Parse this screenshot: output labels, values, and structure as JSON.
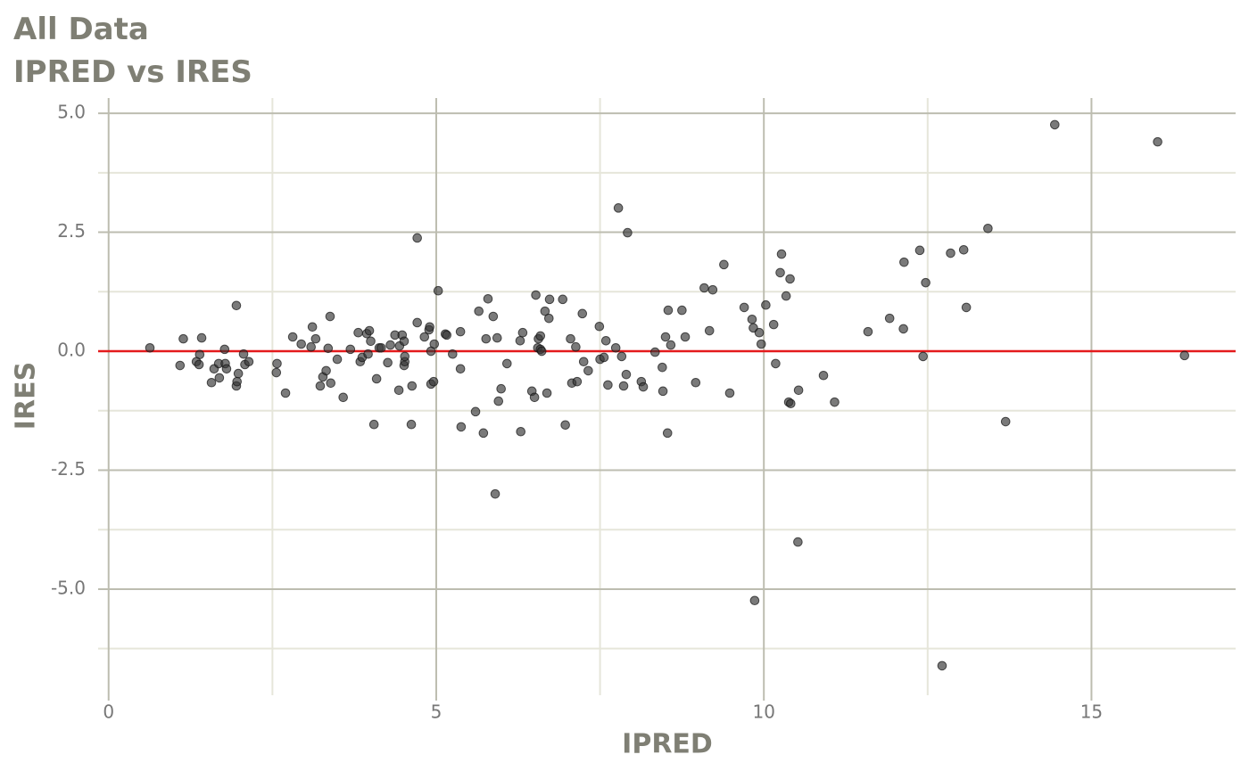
{
  "chart_data": {
    "type": "scatter",
    "title": "All Data",
    "subtitle": "IPRED vs IRES",
    "x_label": "IPRED",
    "y_label": "IRES",
    "xlim": [
      -0.16,
      17.2
    ],
    "ylim": [
      -7.23,
      5.32
    ],
    "xticks": [
      0,
      5,
      10,
      15
    ],
    "yticks": [
      {
        "value": 5,
        "label": "5.0"
      },
      2.5,
      {
        "value": 0,
        "label": "0.0"
      },
      -2.5,
      {
        "value": -5,
        "label": "-5.0"
      }
    ],
    "x_minor_ticks": [
      2.5,
      7.5,
      12.5
    ],
    "y_minor_ticks": [
      3.75,
      1.25,
      -1.25,
      -3.75,
      -6.25
    ],
    "grid": true,
    "color": "#333333",
    "reference_line": {
      "value": 0,
      "color": "#e41a1c"
    },
    "x": [
      0.63,
      1.09,
      1.14,
      1.42,
      1.39,
      1.34,
      1.38,
      1.57,
      1.61,
      1.68,
      1.69,
      1.77,
      1.78,
      1.8,
      1.95,
      1.95,
      1.96,
      1.98,
      2.06,
      2.08,
      2.14,
      2.57,
      2.56,
      2.7,
      2.81,
      2.94,
      3.09,
      3.11,
      3.16,
      3.23,
      3.27,
      3.32,
      3.35,
      3.38,
      3.39,
      3.49,
      3.58,
      3.69,
      3.81,
      3.84,
      3.87,
      3.94,
      3.96,
      3.98,
      4.0,
      4.05,
      4.09,
      4.13,
      4.16,
      4.26,
      4.3,
      4.37,
      4.43,
      4.44,
      4.48,
      4.51,
      4.51,
      4.52,
      4.52,
      4.62,
      4.63,
      4.71,
      4.71,
      4.82,
      4.89,
      4.9,
      4.92,
      4.92,
      4.96,
      4.97,
      5.03,
      5.14,
      5.16,
      5.25,
      5.37,
      5.37,
      5.38,
      5.6,
      5.65,
      5.72,
      5.76,
      5.79,
      5.87,
      5.9,
      5.93,
      5.95,
      5.99,
      6.08,
      6.28,
      6.29,
      6.32,
      6.46,
      6.5,
      6.52,
      6.55,
      6.56,
      6.59,
      6.59,
      6.61,
      6.66,
      6.69,
      6.72,
      6.73,
      6.93,
      6.97,
      7.05,
      7.07,
      7.13,
      7.15,
      7.23,
      7.25,
      7.32,
      7.49,
      7.5,
      7.56,
      7.59,
      7.62,
      7.74,
      7.78,
      7.83,
      7.86,
      7.9,
      7.92,
      8.13,
      8.16,
      8.34,
      8.45,
      8.46,
      8.5,
      8.53,
      8.54,
      8.58,
      8.75,
      8.8,
      8.96,
      9.09,
      9.17,
      9.22,
      9.39,
      9.48,
      9.7,
      9.82,
      9.84,
      9.86,
      9.93,
      9.96,
      10.03,
      10.15,
      10.18,
      10.25,
      10.27,
      10.34,
      10.38,
      10.4,
      10.41,
      10.52,
      10.53,
      10.91,
      11.08,
      11.59,
      11.92,
      12.13,
      12.14,
      12.38,
      12.43,
      12.47,
      12.72,
      12.85,
      13.05,
      13.09,
      13.42,
      13.69,
      14.44,
      16.01,
      16.42
    ],
    "values": [
      0.07,
      -0.3,
      0.26,
      0.28,
      -0.07,
      -0.22,
      -0.28,
      -0.66,
      -0.37,
      -0.26,
      -0.56,
      0.04,
      -0.26,
      -0.37,
      0.96,
      -0.73,
      -0.64,
      -0.47,
      -0.06,
      -0.28,
      -0.22,
      -0.26,
      -0.45,
      -0.88,
      0.3,
      0.15,
      0.09,
      0.51,
      0.26,
      -0.73,
      -0.54,
      -0.41,
      0.06,
      0.73,
      -0.67,
      -0.17,
      -0.97,
      0.04,
      0.39,
      -0.22,
      -0.13,
      0.37,
      -0.06,
      0.43,
      0.21,
      -1.54,
      -0.58,
      0.07,
      0.07,
      -0.24,
      0.13,
      0.34,
      -0.82,
      0.11,
      0.34,
      -0.3,
      0.21,
      -0.22,
      -0.11,
      -1.54,
      -0.73,
      2.38,
      0.6,
      0.3,
      0.45,
      0.51,
      0.0,
      -0.69,
      -0.64,
      0.15,
      1.27,
      0.36,
      0.34,
      -0.06,
      0.41,
      -0.37,
      -1.59,
      -1.27,
      0.84,
      -1.72,
      0.26,
      1.1,
      0.73,
      -3.0,
      0.28,
      -1.05,
      -0.79,
      -0.26,
      0.22,
      -1.69,
      0.39,
      -0.84,
      -0.97,
      1.18,
      0.07,
      0.26,
      0.32,
      0.04,
      0.0,
      0.84,
      -0.88,
      0.69,
      1.09,
      1.09,
      -1.55,
      0.26,
      -0.67,
      0.09,
      -0.64,
      0.79,
      -0.22,
      -0.41,
      0.52,
      -0.17,
      -0.13,
      0.22,
      -0.71,
      0.07,
      3.01,
      -0.11,
      -0.73,
      -0.49,
      2.49,
      -0.64,
      -0.75,
      -0.02,
      -0.34,
      -0.84,
      0.3,
      -1.72,
      0.86,
      0.13,
      0.86,
      0.3,
      -0.66,
      1.33,
      0.43,
      1.29,
      1.82,
      -0.88,
      0.92,
      0.67,
      0.49,
      -5.24,
      0.39,
      0.15,
      0.97,
      0.56,
      -0.26,
      1.65,
      2.04,
      1.16,
      -1.07,
      1.52,
      -1.1,
      -4.01,
      -0.82,
      -0.51,
      -1.07,
      0.41,
      0.69,
      0.47,
      1.87,
      2.12,
      -0.11,
      1.44,
      -6.61,
      2.06,
      2.13,
      0.92,
      2.58,
      -1.48,
      4.76,
      4.4,
      -0.09
    ]
  }
}
